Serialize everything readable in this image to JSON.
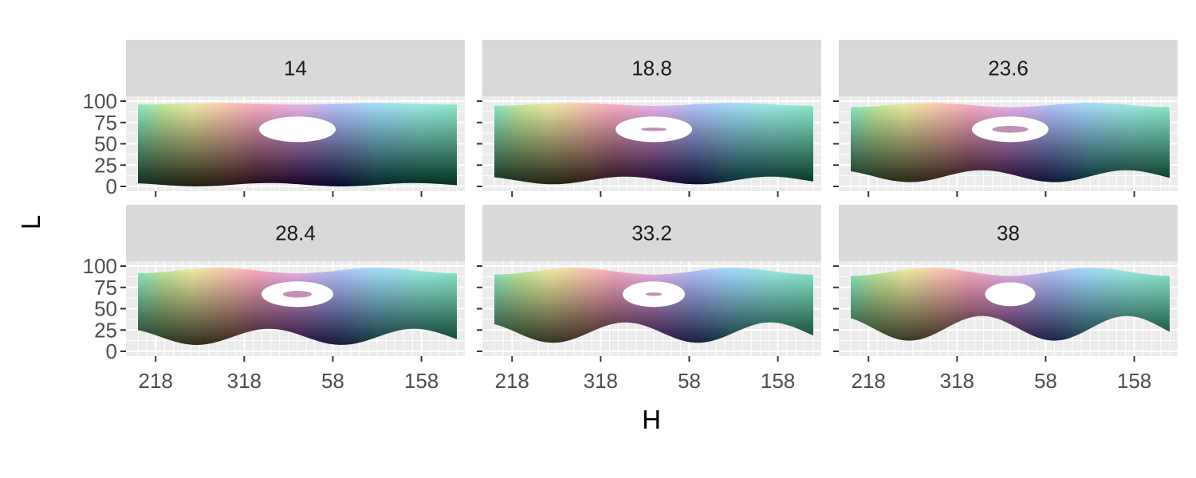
{
  "chart_data": {
    "type": "heatmap",
    "title": "",
    "xlabel": "H",
    "ylabel": "L",
    "facet_variable_values": [
      "14",
      "18.8",
      "23.6",
      "28.4",
      "33.2",
      "38"
    ],
    "facets": [
      {
        "label": "14",
        "hole": {
          "center_h": 78,
          "center_l": 67,
          "outer_rx_h": 32,
          "outer_rl": 15,
          "inner_rx_h": 0,
          "inner_rl": 0
        }
      },
      {
        "label": "18.8",
        "hole": {
          "center_h": 78,
          "center_l": 67,
          "outer_rx_h": 32,
          "outer_rl": 15,
          "inner_rx_h": 11,
          "inner_rl": 2
        }
      },
      {
        "label": "23.6",
        "hole": {
          "center_h": 78,
          "center_l": 67,
          "outer_rx_h": 32,
          "outer_rl": 15,
          "inner_rx_h": 15,
          "inner_rl": 4
        }
      },
      {
        "label": "28.4",
        "hole": {
          "center_h": 78,
          "center_l": 67,
          "outer_rx_h": 30,
          "outer_rl": 15,
          "inner_rx_h": 12,
          "inner_rl": 4
        }
      },
      {
        "label": "33.2",
        "hole": {
          "center_h": 78,
          "center_l": 67,
          "outer_rx_h": 26,
          "outer_rl": 15,
          "inner_rx_h": 7,
          "inner_rl": 2
        }
      },
      {
        "label": "38",
        "hole": {
          "center_h": 78,
          "center_l": 67,
          "outer_rx_h": 21,
          "outer_rl": 14,
          "inner_rx_h": 0,
          "inner_rl": 0
        }
      }
    ],
    "x_axis": {
      "hue_order_start": 198,
      "ticks": [
        158,
        58,
        318,
        218
      ]
    },
    "y_axis": {
      "range": [
        0,
        100
      ],
      "ticks": [
        0,
        25,
        50,
        75,
        100
      ]
    },
    "grid": true,
    "strip_background": "#d9d9d9",
    "panel_background": "#ebebeb",
    "grid_color": "#ffffff",
    "hue_shift_data_units": 40
  }
}
